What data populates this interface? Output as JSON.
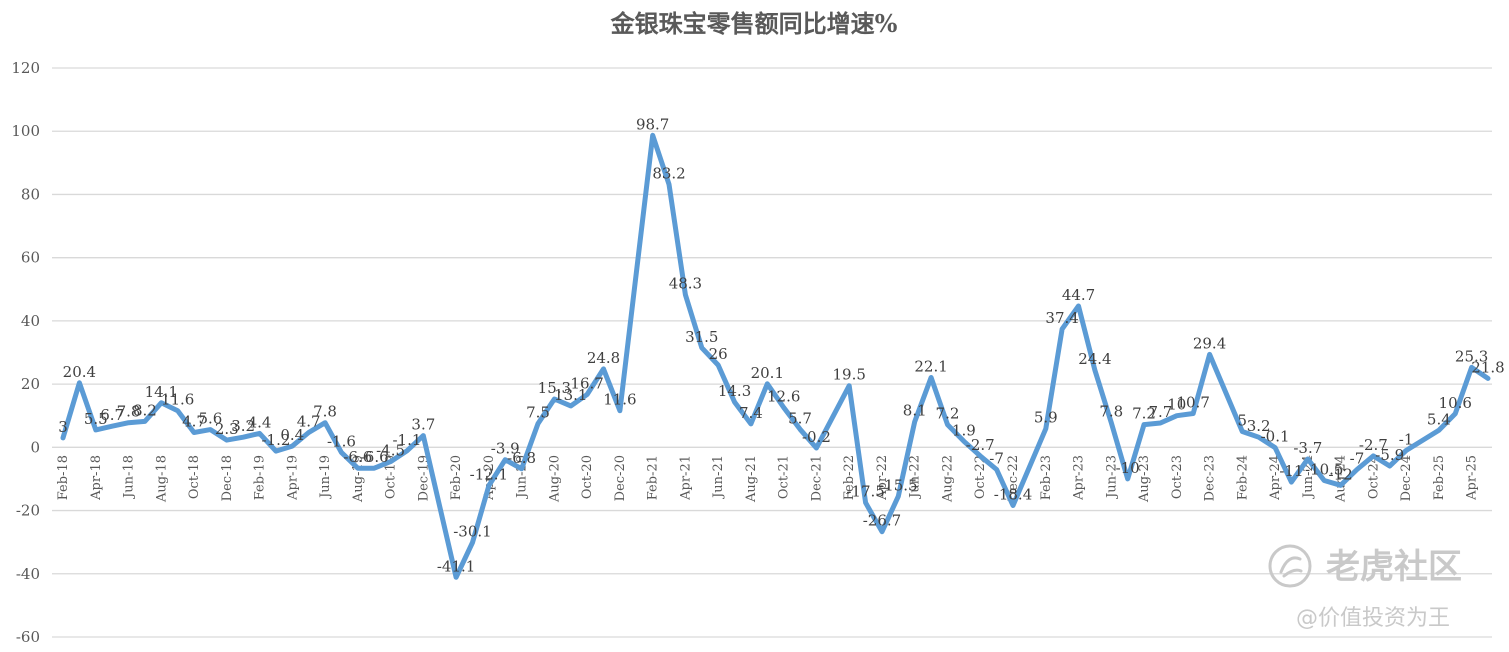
{
  "chart_data": {
    "type": "line",
    "title": "金银珠宝零售额同比增速%",
    "xlabel": "",
    "ylabel": "",
    "ylim": [
      -60,
      120
    ],
    "yticks": [
      -60,
      -40,
      -20,
      0,
      20,
      40,
      60,
      80,
      100,
      120
    ],
    "grid": true,
    "line_color": "#5b9bd5",
    "x": [
      "Feb-18",
      "Mar-18",
      "Apr-18",
      "May-18",
      "Jun-18",
      "Jul-18",
      "Aug-18",
      "Sep-18",
      "Oct-18",
      "Nov-18",
      "Dec-18",
      "Jan-19",
      "Feb-19",
      "Mar-19",
      "Apr-19",
      "May-19",
      "Jun-19",
      "Jul-19",
      "Aug-19",
      "Sep-19",
      "Oct-19",
      "Nov-19",
      "Dec-19",
      "Jan-20",
      "Feb-20",
      "Mar-20",
      "Apr-20",
      "May-20",
      "Jun-20",
      "Jul-20",
      "Aug-20",
      "Sep-20",
      "Oct-20",
      "Nov-20",
      "Dec-20",
      "Jan-21",
      "Feb-21",
      "Mar-21",
      "Apr-21",
      "May-21",
      "Jun-21",
      "Jul-21",
      "Aug-21",
      "Sep-21",
      "Oct-21",
      "Nov-21",
      "Dec-21",
      "Jan-22",
      "Feb-22",
      "Mar-22",
      "Apr-22",
      "May-22",
      "Jun-22",
      "Jul-22",
      "Aug-22",
      "Sep-22",
      "Oct-22",
      "Nov-22",
      "Dec-22",
      "Jan-23",
      "Feb-23",
      "Mar-23",
      "Apr-23",
      "May-23",
      "Jun-23",
      "Jul-23",
      "Aug-23",
      "Sep-23",
      "Oct-23",
      "Nov-23",
      "Dec-23",
      "Jan-24",
      "Feb-24",
      "Mar-24",
      "Apr-24",
      "May-24",
      "Jun-24",
      "Jul-24",
      "Aug-24",
      "Sep-24",
      "Oct-24",
      "Nov-24",
      "Dec-24",
      "Jan-25",
      "Feb-25",
      "Mar-25",
      "Apr-25",
      "May-25"
    ],
    "x_tick_labels": [
      "Feb-18",
      "Apr-18",
      "Jun-18",
      "Aug-18",
      "Oct-18",
      "Dec-18",
      "Feb-19",
      "Apr-19",
      "Jun-19",
      "Aug-19",
      "Oct-19",
      "Dec-19",
      "Feb-20",
      "Apr-20",
      "Jun-20",
      "Aug-20",
      "Oct-20",
      "Dec-20",
      "Feb-21",
      "Apr-21",
      "Jun-21",
      "Aug-21",
      "Oct-21",
      "Dec-21",
      "Feb-22",
      "Apr-22",
      "Jun-22",
      "Aug-22",
      "Oct-22",
      "Dec-22",
      "Feb-23",
      "Apr-23",
      "Jun-23",
      "Aug-23",
      "Oct-23",
      "Dec-23",
      "Feb-24",
      "Apr-24",
      "Jun-24",
      "Aug-24",
      "Oct-24",
      "Dec-24",
      "Feb-25",
      "Apr-25"
    ],
    "series": [
      {
        "values": [
          3,
          20.4,
          5.5,
          6.7,
          7.8,
          8.2,
          14.1,
          11.6,
          4.7,
          5.6,
          2.3,
          3.2,
          4.4,
          -1.2,
          0.4,
          4.7,
          7.8,
          -1.6,
          -6.6,
          -6.6,
          -4.5,
          -1.1,
          3.7,
          null,
          -41.1,
          -30.1,
          -12.1,
          -3.9,
          -6.8,
          7.5,
          15.3,
          13.1,
          16.7,
          24.8,
          11.6,
          null,
          98.7,
          83.2,
          48.3,
          31.5,
          26,
          14.3,
          7.4,
          20.1,
          12.6,
          5.7,
          -0.2,
          null,
          19.5,
          -17.5,
          -26.7,
          -15.5,
          8.1,
          22.1,
          7.2,
          1.9,
          -2.7,
          -7,
          -18.4,
          null,
          5.9,
          37.4,
          44.7,
          24.4,
          7.8,
          -10,
          7.2,
          7.7,
          10,
          10.7,
          29.4,
          null,
          5,
          3.2,
          -0.1,
          -11,
          -3.7,
          -10.5,
          -12,
          -7,
          -2.7,
          -5.9,
          -1,
          null,
          5.4,
          10.6,
          25.3,
          21.8
        ]
      }
    ],
    "data_labels": [
      "3",
      "20.4",
      "5.5",
      "6.7",
      "7.8",
      "8.2",
      "14.1",
      "11.6",
      "4.7",
      "5.6",
      "2.3",
      "3.2",
      "4.4",
      "-1.2",
      "0.4",
      "4.7",
      "7.8",
      "-1.6",
      "-6.6",
      "-6.6",
      "-4.5",
      "-1.1",
      "3.7",
      "",
      "-41.1",
      "-30.1",
      "-12.1",
      "-3.9",
      "-6.8",
      "7.5",
      "15.3",
      "13.1",
      "16.7",
      "24.8",
      "11.6",
      "",
      "98.7",
      "83.2",
      "48.3",
      "31.5",
      "26",
      "14.3",
      "7.4",
      "20.1",
      "12.6",
      "5.7",
      "-0.2",
      "",
      "19.5",
      "-17.5",
      "-26.7",
      "-15.5",
      "8.1",
      "22.1",
      "7.2",
      "1.9",
      "-2.7",
      "-7",
      "-18.4",
      "",
      "5.9",
      "37.4",
      "44.7",
      "24.4",
      "7.8",
      "-10",
      "7.2",
      "7.7",
      "10",
      "10.7",
      "29.4",
      "",
      "5",
      "3.2",
      "-0.1",
      "-11",
      "-3.7",
      "-10.5",
      "-12",
      "-7",
      "-2.7",
      "-5.9",
      "-1",
      "",
      "5.4",
      "10.6",
      "25.3",
      "21.8"
    ]
  },
  "watermark": {
    "brand": "老虎社区",
    "handle": "@价值投资为王",
    "icon": "tiger-community-logo-icon"
  }
}
